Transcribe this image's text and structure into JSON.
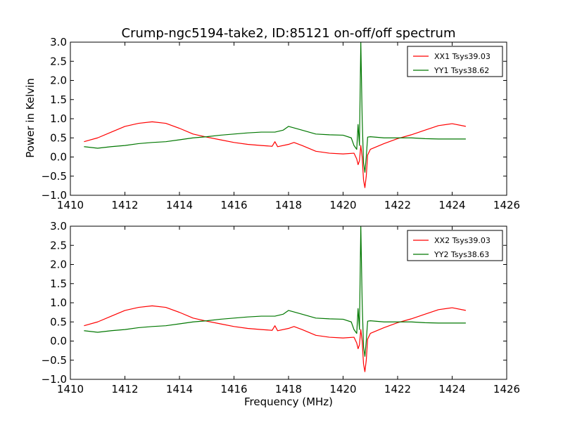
{
  "figure": {
    "title": "Crump-ngc5194-take2, ID:85121 on-off/off spectrum",
    "ylabel": "Power in Kelvin",
    "xlabel": "Frequency (MHz)"
  },
  "chart_data": [
    {
      "type": "line",
      "xlim": [
        1410,
        1426
      ],
      "ylim": [
        -1.0,
        3.0
      ],
      "xticks": [
        1410,
        1412,
        1414,
        1416,
        1418,
        1420,
        1422,
        1424,
        1426
      ],
      "xtick_labels": [
        "1410",
        "1412",
        "1414",
        "1416",
        "1418",
        "1420",
        "1422",
        "1424",
        "1426"
      ],
      "yticks": [
        -1.0,
        -0.5,
        0.0,
        0.5,
        1.0,
        1.5,
        2.0,
        2.5,
        3.0
      ],
      "ytick_labels": [
        "−1.0",
        "−0.5",
        "0.0",
        "0.5",
        "1.0",
        "1.5",
        "2.0",
        "2.5",
        "3.0"
      ],
      "grid": false,
      "legend_position": "top-right",
      "series": [
        {
          "name": "XX1 Tsys39.03",
          "color": "#ff0000",
          "x": [
            1410.5,
            1411.0,
            1411.5,
            1412.0,
            1412.5,
            1413.0,
            1413.5,
            1414.0,
            1414.5,
            1415.0,
            1415.5,
            1416.0,
            1416.5,
            1417.0,
            1417.4,
            1417.5,
            1417.6,
            1418.0,
            1418.2,
            1418.5,
            1419.0,
            1419.5,
            1420.0,
            1420.4,
            1420.5,
            1420.55,
            1420.6,
            1420.65,
            1420.7,
            1420.75,
            1420.8,
            1420.85,
            1420.9,
            1421.0,
            1421.5,
            1422.0,
            1422.5,
            1423.0,
            1423.5,
            1424.0,
            1424.5
          ],
          "y": [
            0.4,
            0.5,
            0.65,
            0.8,
            0.88,
            0.92,
            0.88,
            0.75,
            0.6,
            0.52,
            0.45,
            0.38,
            0.33,
            0.3,
            0.28,
            0.4,
            0.27,
            0.33,
            0.38,
            0.3,
            0.15,
            0.1,
            0.08,
            0.1,
            -0.05,
            -0.2,
            -0.1,
            0.3,
            0.0,
            -0.6,
            -0.8,
            -0.5,
            0.05,
            0.2,
            0.35,
            0.48,
            0.58,
            0.7,
            0.82,
            0.87,
            0.8
          ]
        },
        {
          "name": "YY1 Tsys38.62",
          "color": "#007700",
          "x": [
            1410.5,
            1411.0,
            1411.5,
            1412.0,
            1412.5,
            1413.0,
            1413.5,
            1414.0,
            1414.5,
            1415.0,
            1415.5,
            1416.0,
            1416.5,
            1417.0,
            1417.5,
            1417.8,
            1418.0,
            1418.2,
            1418.5,
            1419.0,
            1419.5,
            1420.0,
            1420.3,
            1420.4,
            1420.5,
            1420.55,
            1420.6,
            1420.65,
            1420.7,
            1420.75,
            1420.8,
            1420.85,
            1420.9,
            1421.0,
            1421.5,
            1422.0,
            1422.5,
            1423.0,
            1423.5,
            1424.0,
            1424.5
          ],
          "y": [
            0.27,
            0.23,
            0.27,
            0.3,
            0.35,
            0.38,
            0.4,
            0.45,
            0.5,
            0.53,
            0.57,
            0.6,
            0.63,
            0.65,
            0.65,
            0.7,
            0.8,
            0.76,
            0.7,
            0.6,
            0.58,
            0.57,
            0.5,
            0.3,
            0.2,
            0.85,
            0.3,
            3.0,
            1.0,
            -0.15,
            -0.4,
            0.0,
            0.52,
            0.53,
            0.5,
            0.5,
            0.5,
            0.48,
            0.47,
            0.47,
            0.47
          ]
        }
      ]
    },
    {
      "type": "line",
      "xlim": [
        1410,
        1426
      ],
      "ylim": [
        -1.0,
        3.0
      ],
      "xticks": [
        1410,
        1412,
        1414,
        1416,
        1418,
        1420,
        1422,
        1424,
        1426
      ],
      "xtick_labels": [
        "1410",
        "1412",
        "1414",
        "1416",
        "1418",
        "1420",
        "1422",
        "1424",
        "1426"
      ],
      "yticks": [
        -1.0,
        -0.5,
        0.0,
        0.5,
        1.0,
        1.5,
        2.0,
        2.5,
        3.0
      ],
      "ytick_labels": [
        "−1.0",
        "−0.5",
        "0.0",
        "0.5",
        "1.0",
        "1.5",
        "2.0",
        "2.5",
        "3.0"
      ],
      "grid": false,
      "legend_position": "top-right",
      "series": [
        {
          "name": "XX2 Tsys39.03",
          "color": "#ff0000",
          "x": [
            1410.5,
            1411.0,
            1411.5,
            1412.0,
            1412.5,
            1413.0,
            1413.5,
            1414.0,
            1414.5,
            1415.0,
            1415.5,
            1416.0,
            1416.5,
            1417.0,
            1417.4,
            1417.5,
            1417.6,
            1418.0,
            1418.2,
            1418.5,
            1419.0,
            1419.5,
            1420.0,
            1420.4,
            1420.5,
            1420.55,
            1420.6,
            1420.65,
            1420.7,
            1420.75,
            1420.8,
            1420.85,
            1420.9,
            1421.0,
            1421.5,
            1422.0,
            1422.5,
            1423.0,
            1423.5,
            1424.0,
            1424.5
          ],
          "y": [
            0.4,
            0.5,
            0.65,
            0.8,
            0.88,
            0.92,
            0.88,
            0.75,
            0.6,
            0.52,
            0.45,
            0.38,
            0.33,
            0.3,
            0.28,
            0.4,
            0.27,
            0.33,
            0.38,
            0.3,
            0.15,
            0.1,
            0.08,
            0.1,
            -0.05,
            -0.2,
            -0.1,
            0.3,
            0.0,
            -0.6,
            -0.8,
            -0.5,
            0.05,
            0.2,
            0.35,
            0.48,
            0.58,
            0.7,
            0.82,
            0.87,
            0.8
          ]
        },
        {
          "name": "YY2 Tsys38.63",
          "color": "#007700",
          "x": [
            1410.5,
            1411.0,
            1411.5,
            1412.0,
            1412.5,
            1413.0,
            1413.5,
            1414.0,
            1414.5,
            1415.0,
            1415.5,
            1416.0,
            1416.5,
            1417.0,
            1417.5,
            1417.8,
            1418.0,
            1418.2,
            1418.5,
            1419.0,
            1419.5,
            1420.0,
            1420.3,
            1420.4,
            1420.5,
            1420.55,
            1420.6,
            1420.65,
            1420.7,
            1420.75,
            1420.8,
            1420.85,
            1420.9,
            1421.0,
            1421.5,
            1422.0,
            1422.5,
            1423.0,
            1423.5,
            1424.0,
            1424.5
          ],
          "y": [
            0.27,
            0.23,
            0.27,
            0.3,
            0.35,
            0.38,
            0.4,
            0.45,
            0.5,
            0.53,
            0.57,
            0.6,
            0.63,
            0.65,
            0.65,
            0.7,
            0.8,
            0.76,
            0.7,
            0.6,
            0.58,
            0.57,
            0.5,
            0.3,
            0.2,
            0.85,
            0.3,
            3.0,
            1.0,
            -0.15,
            -0.4,
            0.0,
            0.52,
            0.53,
            0.5,
            0.5,
            0.5,
            0.48,
            0.47,
            0.47,
            0.47
          ]
        }
      ]
    }
  ]
}
